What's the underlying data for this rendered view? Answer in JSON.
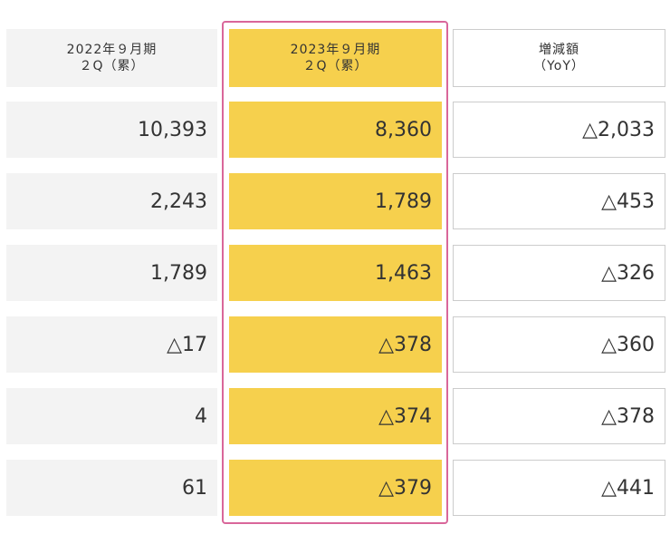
{
  "headers": {
    "col1_line1": "2022年９月期",
    "col1_line2": "２Q（累）",
    "col2_line1": "2023年９月期",
    "col2_line2": "２Q（累）",
    "col3_line1": "増減額",
    "col3_line2": "（YoY）"
  },
  "rows": [
    {
      "prev": "10,393",
      "curr": "8,360",
      "diff": "△2,033"
    },
    {
      "prev": "2,243",
      "curr": "1,789",
      "diff": "△453"
    },
    {
      "prev": "1,789",
      "curr": "1,463",
      "diff": "△326"
    },
    {
      "prev": "△17",
      "curr": "△378",
      "diff": "△360"
    },
    {
      "prev": "4",
      "curr": "△374",
      "diff": "△378"
    },
    {
      "prev": "61",
      "curr": "△379",
      "diff": "△441"
    }
  ],
  "colors": {
    "highlight_fill": "#f6d04d",
    "highlight_frame": "#d9679a",
    "gray_fill": "#f3f3f3"
  }
}
